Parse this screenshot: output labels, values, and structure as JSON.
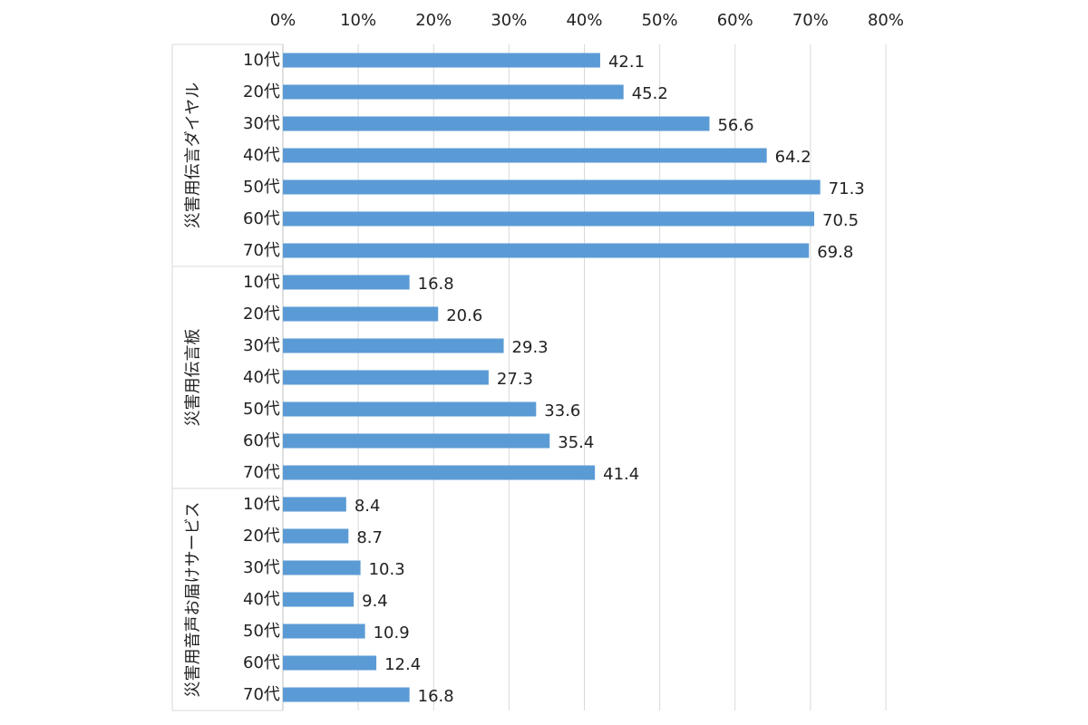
{
  "chart_data": {
    "type": "bar",
    "orientation": "horizontal",
    "xlim": [
      0,
      80
    ],
    "x_ticks": [
      "0%",
      "10%",
      "20%",
      "30%",
      "40%",
      "50%",
      "60%",
      "70%",
      "80%"
    ],
    "grid": "vertical",
    "legend": "none",
    "bar_color": "#5B9BD5",
    "groups": [
      {
        "label": "災害用伝言ダイヤル",
        "categories": [
          "10代",
          "20代",
          "30代",
          "40代",
          "50代",
          "60代",
          "70代"
        ],
        "values": [
          42.1,
          45.2,
          56.6,
          64.2,
          71.3,
          70.5,
          69.8
        ],
        "value_labels": [
          "42.1",
          "45.2",
          "56.6",
          "64.2",
          "71.3",
          "70.5",
          "69.8"
        ]
      },
      {
        "label": "災害用伝言板",
        "categories": [
          "10代",
          "20代",
          "30代",
          "40代",
          "50代",
          "60代",
          "70代"
        ],
        "values": [
          16.8,
          20.6,
          29.3,
          27.3,
          33.6,
          35.4,
          41.4
        ],
        "value_labels": [
          "16.8",
          "20.6",
          "29.3",
          "27.3",
          "33.6",
          "35.4",
          "41.4"
        ]
      },
      {
        "label": "災害用音声お届けサービス",
        "categories": [
          "10代",
          "20代",
          "30代",
          "40代",
          "50代",
          "60代",
          "70代"
        ],
        "values": [
          8.4,
          8.7,
          10.3,
          9.4,
          10.9,
          12.4,
          16.8
        ],
        "value_labels": [
          "8.4",
          "8.7",
          "10.3",
          "9.4",
          "10.9",
          "12.4",
          "16.8"
        ]
      }
    ]
  }
}
